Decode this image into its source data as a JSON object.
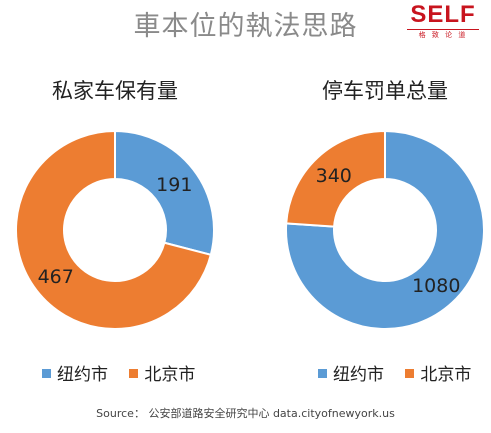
{
  "title": "車本位的執法思路",
  "logo": {
    "word": "SELF",
    "subtitle": "格 致 论 道"
  },
  "colors": {
    "nyc": "#5b9bd5",
    "beijing": "#ed7d31"
  },
  "chart_data": [
    {
      "type": "pie",
      "title": "私家车保有量",
      "categories": [
        "纽约市",
        "北京市"
      ],
      "values": [
        191,
        467
      ],
      "donut": true
    },
    {
      "type": "pie",
      "title": "停车罚单总量",
      "categories": [
        "纽约市",
        "北京市"
      ],
      "values": [
        1080,
        340
      ],
      "donut": true
    }
  ],
  "source": "Source： 公安部道路安全研究中心 data.cityofnewyork.us"
}
